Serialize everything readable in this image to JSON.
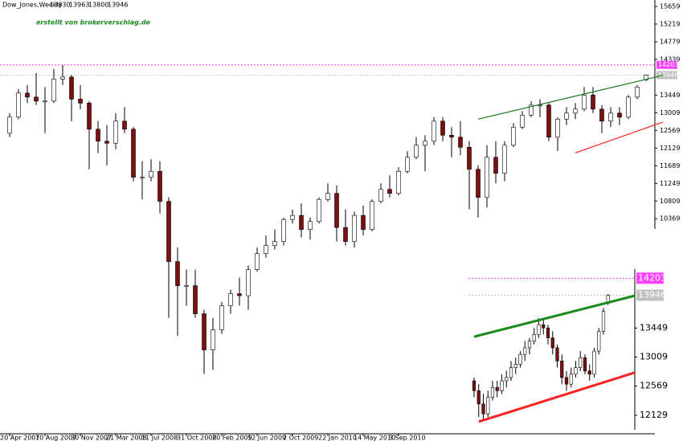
{
  "chart_data": [
    {
      "type": "candlestick",
      "title": "Dow_Jones,Weekly",
      "header_ohlc": [
        13830,
        13963,
        13800,
        13946
      ],
      "annotation": "erstellt von brokerverschlag.de",
      "categories": [
        "20 Apr 2007",
        null,
        null,
        null,
        "10 Aug 2007",
        null,
        null,
        null,
        "30 Nov 2007",
        null,
        null,
        null,
        "21 Mar 2008",
        null,
        null,
        null,
        "11 Jul 2008",
        null,
        null,
        null,
        "31 Oct 2008",
        null,
        null,
        null,
        "20 Feb 2009",
        null,
        null,
        null,
        "12 Jun 2009",
        null,
        null,
        null,
        "2 Oct 2009",
        null,
        null,
        null,
        "22 Jan 2010",
        null,
        null,
        null,
        "14 May 2010",
        null,
        null,
        null,
        "3 Sep 2010",
        null,
        null,
        null,
        null,
        null,
        null,
        null,
        null,
        null,
        null,
        null,
        null,
        null,
        null,
        null,
        null,
        null,
        null,
        null,
        null,
        null,
        null,
        null,
        null,
        null,
        null,
        null,
        null,
        null,
        null,
        null,
        null,
        null,
        null
      ],
      "candles": [
        [
          12500,
          13000,
          12400,
          12900
        ],
        [
          12900,
          13600,
          12850,
          13500
        ],
        [
          13500,
          13700,
          13250,
          13400
        ],
        [
          13400,
          14000,
          13200,
          13300
        ],
        [
          13300,
          13650,
          12500,
          13300
        ],
        [
          13300,
          14100,
          13250,
          13850
        ],
        [
          13850,
          14200,
          13700,
          13900
        ],
        [
          13900,
          13950,
          12800,
          13350
        ],
        [
          13350,
          13700,
          13100,
          13250
        ],
        [
          13250,
          13300,
          11600,
          12600
        ],
        [
          12600,
          12800,
          12000,
          12300
        ],
        [
          12300,
          12700,
          11700,
          12250
        ],
        [
          12250,
          13000,
          12100,
          12800
        ],
        [
          12800,
          13150,
          12500,
          12600
        ],
        [
          12600,
          12650,
          11300,
          11400
        ],
        [
          11400,
          11800,
          10850,
          11400
        ],
        [
          11400,
          11850,
          11300,
          11550
        ],
        [
          11550,
          11800,
          10500,
          10800
        ],
        [
          10800,
          10900,
          7900,
          9300
        ],
        [
          9300,
          9650,
          7450,
          8700
        ],
        [
          8700,
          9100,
          8200,
          8700
        ],
        [
          8700,
          9100,
          7900,
          8000
        ],
        [
          8000,
          8100,
          6500,
          7100
        ],
        [
          7100,
          7900,
          6600,
          7600
        ],
        [
          7600,
          8300,
          7500,
          8200
        ],
        [
          8200,
          8600,
          8000,
          8500
        ],
        [
          8500,
          8900,
          8200,
          8450
        ],
        [
          8450,
          9200,
          8100,
          9100
        ],
        [
          9100,
          9650,
          9050,
          9500
        ],
        [
          9500,
          9950,
          9400,
          9700
        ],
        [
          9700,
          10100,
          9600,
          9800
        ],
        [
          9800,
          10400,
          9700,
          10350
        ],
        [
          10350,
          10600,
          10250,
          10450
        ],
        [
          10450,
          10750,
          9900,
          10100
        ],
        [
          10100,
          10400,
          9850,
          10300
        ],
        [
          10300,
          10900,
          10250,
          10850
        ],
        [
          10850,
          11250,
          10800,
          11000
        ],
        [
          11000,
          11200,
          9800,
          10150
        ],
        [
          10150,
          10600,
          9700,
          9800
        ],
        [
          9800,
          10550,
          9650,
          10450
        ],
        [
          10450,
          10700,
          9950,
          10100
        ],
        [
          10100,
          10850,
          10050,
          10800
        ],
        [
          10800,
          11250,
          10750,
          11100
        ],
        [
          11100,
          11450,
          10900,
          11000
        ],
        [
          11000,
          11650,
          10950,
          11550
        ],
        [
          11550,
          12050,
          11500,
          11900
        ],
        [
          11900,
          12400,
          11850,
          12200
        ],
        [
          12200,
          12450,
          11550,
          12300
        ],
        [
          12300,
          12900,
          12200,
          12800
        ],
        [
          12800,
          12900,
          12300,
          12450
        ],
        [
          12450,
          12650,
          11900,
          12400
        ],
        [
          12400,
          12800,
          11950,
          12150
        ],
        [
          12150,
          12300,
          10600,
          11600
        ],
        [
          11600,
          11700,
          10400,
          10900
        ],
        [
          10900,
          12200,
          10650,
          11900
        ],
        [
          11900,
          12300,
          11250,
          11500
        ],
        [
          11500,
          12300,
          11300,
          12200
        ],
        [
          12200,
          12750,
          12150,
          12650
        ],
        [
          12650,
          13050,
          12600,
          12950
        ],
        [
          12950,
          13300,
          12900,
          13200
        ],
        [
          13200,
          13350,
          12900,
          13200
        ],
        [
          13200,
          13250,
          12300,
          12400
        ],
        [
          12400,
          12900,
          12050,
          12850
        ],
        [
          12850,
          13150,
          12700,
          13000
        ],
        [
          13000,
          13250,
          12850,
          13100
        ],
        [
          13100,
          13650,
          13050,
          13450
        ],
        [
          13450,
          13650,
          13000,
          13100
        ],
        [
          13100,
          13200,
          12500,
          12800
        ],
        [
          12800,
          13150,
          12650,
          13000
        ],
        [
          13000,
          13150,
          12700,
          12900
        ],
        [
          12900,
          13450,
          12850,
          13400
        ],
        [
          13400,
          13700,
          13350,
          13650
        ],
        [
          13830,
          13963,
          13800,
          13946
        ]
      ],
      "up_color": "#ffffff",
      "down_color": "#7a1010",
      "ylim": [
        5009,
        15819
      ],
      "yticks": [
        10369,
        10809,
        11249,
        11689,
        12129,
        12569,
        13009,
        13449,
        14339,
        14779,
        15219,
        15659
      ],
      "levels": [
        {
          "value": 14203,
          "color": "#ff40ff"
        },
        {
          "value": 13946,
          "color": "#c0c0c0"
        }
      ],
      "trendlines": [
        {
          "color": "#1a7a1a",
          "points": [
            [
              53,
              12850
            ],
            [
              72,
              13841
            ]
          ]
        },
        {
          "color": "#ff2020",
          "points": [
            [
              64,
              12009
            ],
            [
              72,
              12629
            ]
          ]
        }
      ]
    },
    {
      "type": "candlestick",
      "candles": [
        [
          12650,
          12700,
          12400,
          12500
        ],
        [
          12500,
          12600,
          12100,
          12300
        ],
        [
          12300,
          12450,
          12050,
          12150
        ],
        [
          12150,
          12500,
          12100,
          12400
        ],
        [
          12400,
          12650,
          12350,
          12550
        ],
        [
          12550,
          12650,
          12400,
          12500
        ],
        [
          12500,
          12750,
          12450,
          12650
        ],
        [
          12650,
          12800,
          12550,
          12700
        ],
        [
          12700,
          12950,
          12650,
          12850
        ],
        [
          12850,
          13000,
          12750,
          12900
        ],
        [
          12900,
          13100,
          12850,
          13050
        ],
        [
          13050,
          13250,
          12950,
          13150
        ],
        [
          13150,
          13300,
          13050,
          13250
        ],
        [
          13250,
          13450,
          13200,
          13350
        ],
        [
          13350,
          13600,
          13300,
          13500
        ],
        [
          13500,
          13600,
          13350,
          13450
        ],
        [
          13450,
          13500,
          13200,
          13300
        ],
        [
          13300,
          13400,
          13050,
          13150
        ],
        [
          13150,
          13200,
          12850,
          12950
        ],
        [
          12950,
          13050,
          12600,
          12700
        ],
        [
          12700,
          12800,
          12500,
          12600
        ],
        [
          12600,
          12850,
          12550,
          12750
        ],
        [
          12750,
          12950,
          12700,
          12850
        ],
        [
          12850,
          13100,
          12800,
          13000
        ],
        [
          13000,
          13050,
          12750,
          12800
        ],
        [
          12800,
          12900,
          12650,
          12750
        ],
        [
          12750,
          13150,
          12700,
          13100
        ],
        [
          13100,
          13450,
          13050,
          13400
        ],
        [
          13400,
          13750,
          13350,
          13700
        ],
        [
          13830,
          13963,
          13800,
          13946
        ]
      ],
      "up_color": "#ffffff",
      "down_color": "#7a1010",
      "ylim": [
        11970,
        14341
      ],
      "yticks": [
        12129,
        12569,
        13009,
        13449
      ],
      "levels": [
        {
          "value": 14203,
          "color": "#ff40ff"
        },
        {
          "value": 13946,
          "color": "#c0c0c0"
        }
      ],
      "trendlines": [
        {
          "color": "#1a8a1a",
          "points": [
            [
              0,
              13318
            ],
            [
              29,
              13835
            ]
          ]
        },
        {
          "color": "#ff2020",
          "points": [
            [
              1,
              12031
            ],
            [
              29,
              12647
            ]
          ]
        }
      ]
    }
  ]
}
